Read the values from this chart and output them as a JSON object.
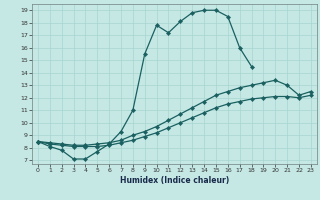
{
  "xlabel": "Humidex (Indice chaleur)",
  "bg_color": "#c5e8e5",
  "line_color": "#1a6060",
  "grid_color": "#a8d4d0",
  "xlim": [
    -0.5,
    23.5
  ],
  "ylim": [
    6.7,
    19.5
  ],
  "xticks": [
    0,
    1,
    2,
    3,
    4,
    5,
    6,
    7,
    8,
    9,
    10,
    11,
    12,
    13,
    14,
    15,
    16,
    17,
    18,
    19,
    20,
    21,
    22,
    23
  ],
  "yticks": [
    7,
    8,
    9,
    10,
    11,
    12,
    13,
    14,
    15,
    16,
    17,
    18,
    19
  ],
  "curve_main_x": [
    0,
    1,
    2,
    3,
    4,
    5,
    6,
    7,
    8,
    9,
    10,
    11,
    12,
    13,
    14,
    15,
    16,
    17,
    18
  ],
  "curve_main_y": [
    8.5,
    8.1,
    7.8,
    7.1,
    7.1,
    7.7,
    8.3,
    9.3,
    11.0,
    15.5,
    17.8,
    17.2,
    18.1,
    18.8,
    19.0,
    19.0,
    18.5,
    16.0,
    14.5
  ],
  "curve2_x": [
    0,
    1,
    2,
    3,
    4,
    5,
    6,
    7,
    8,
    9,
    10,
    11,
    12,
    13,
    14,
    15,
    16,
    17,
    18,
    19,
    20,
    21,
    22,
    23
  ],
  "curve2_y": [
    8.5,
    8.4,
    8.3,
    8.2,
    8.2,
    8.3,
    8.4,
    8.6,
    9.0,
    9.3,
    9.7,
    10.2,
    10.7,
    11.2,
    11.7,
    12.2,
    12.5,
    12.8,
    13.0,
    13.2,
    13.4,
    13.0,
    12.2,
    12.5
  ],
  "curve3_x": [
    0,
    1,
    2,
    3,
    4,
    5,
    6,
    7,
    8,
    9,
    10,
    11,
    12,
    13,
    14,
    15,
    16,
    17,
    18,
    19,
    20,
    21,
    22,
    23
  ],
  "curve3_y": [
    8.5,
    8.3,
    8.2,
    8.1,
    8.1,
    8.1,
    8.2,
    8.4,
    8.6,
    8.9,
    9.2,
    9.6,
    10.0,
    10.4,
    10.8,
    11.2,
    11.5,
    11.7,
    11.9,
    12.0,
    12.1,
    12.1,
    12.0,
    12.2
  ]
}
